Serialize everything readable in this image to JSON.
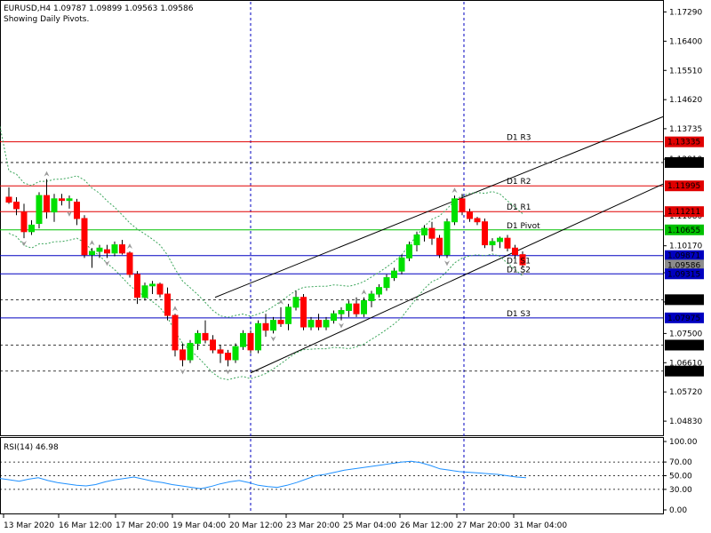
{
  "header": {
    "symbol_line": "EURUSD,H4  1.09787 1.09899 1.09563 1.09586",
    "sub_line": "Showing Daily Pivots."
  },
  "colors": {
    "bull": "#00e000",
    "bear": "#ff0000",
    "pivot_red": "#e00000",
    "pivot_green": "#00c000",
    "pivot_blue": "#0000c0",
    "grid_blue": "#0000c0",
    "band": "#3aa55a",
    "rsi": "#1e90ff"
  },
  "price_axis": {
    "ticks": [
      "1.17290",
      "1.16400",
      "1.15510",
      "1.14620",
      "1.13735",
      "1.12810",
      "1.11080",
      "1.10170",
      "1.09350",
      "1.08460",
      "1.07500",
      "1.06610",
      "1.05720",
      "1.04830"
    ],
    "tick_values": [
      1.1729,
      1.164,
      1.1551,
      1.1462,
      1.13735,
      1.1281,
      1.1108,
      1.1017,
      1.0935,
      1.0846,
      1.075,
      1.0661,
      1.0572,
      1.0483
    ]
  },
  "price_labels": [
    {
      "text": "1.13335",
      "value": 1.13335,
      "style": "red"
    },
    {
      "text": "1.12706",
      "value": 1.12706,
      "style": "black"
    },
    {
      "text": "1.11995",
      "value": 1.11995,
      "style": "red"
    },
    {
      "text": "1.11211",
      "value": 1.11211,
      "style": "red"
    },
    {
      "text": "1.10655",
      "value": 1.10655,
      "style": "green"
    },
    {
      "text": "1.09871",
      "value": 1.09871,
      "style": "blue"
    },
    {
      "text": "1.09586",
      "value": 1.09586,
      "style": "gray"
    },
    {
      "text": "1.09315",
      "value": 1.09315,
      "style": "blue"
    },
    {
      "text": "1.08529",
      "value": 1.08529,
      "style": "black"
    },
    {
      "text": "1.07975",
      "value": 1.07975,
      "style": "blue"
    },
    {
      "text": "1.07146",
      "value": 1.07146,
      "style": "black"
    },
    {
      "text": "1.06355",
      "value": 1.06355,
      "style": "black"
    }
  ],
  "pivots": [
    {
      "name": "D1 R3",
      "value": 1.13335,
      "color": "red"
    },
    {
      "name": "D1 R2",
      "value": 1.11995,
      "color": "red"
    },
    {
      "name": "D1 R1",
      "value": 1.11211,
      "color": "red"
    },
    {
      "name": "D1 Pivot",
      "value": 1.10655,
      "color": "green"
    },
    {
      "name": "D1 S1",
      "value": 1.09871,
      "color": "blue"
    },
    {
      "name": "D1 S2",
      "value": 1.09315,
      "color": "blue"
    },
    {
      "name": "D1 S3",
      "value": 1.07975,
      "color": "blue"
    }
  ],
  "dashed_levels": [
    1.12706,
    1.08529,
    1.07146,
    1.06355
  ],
  "time_axis": [
    "13 Mar 2020",
    "16 Mar 12:00",
    "17 Mar 20:00",
    "19 Mar 04:00",
    "20 Mar 12:00",
    "23 Mar 20:00",
    "25 Mar 04:00",
    "26 Mar 12:00",
    "27 Mar 20:00",
    "31 Mar 04:00"
  ],
  "rsi": {
    "label": "RSI(14) 46.98",
    "ticks": [
      "100.00",
      "70.00",
      "50.00",
      "30.00",
      "0.00"
    ],
    "tick_values": [
      100,
      70,
      50,
      30,
      0
    ],
    "values": [
      46,
      44,
      42,
      45,
      47,
      43,
      40,
      38,
      36,
      35,
      37,
      41,
      44,
      46,
      48,
      45,
      42,
      40,
      37,
      35,
      33,
      31,
      34,
      38,
      41,
      43,
      40,
      36,
      34,
      33,
      36,
      40,
      45,
      50,
      52,
      55,
      58,
      60,
      62,
      64,
      66,
      68,
      70,
      71,
      69,
      65,
      60,
      58,
      56,
      55,
      54,
      53,
      52,
      50,
      48,
      47
    ]
  },
  "chart_data": {
    "type": "candlestick",
    "candles": [
      [
        1.1165,
        1.1195,
        1.1145,
        1.115
      ],
      [
        1.115,
        1.1165,
        1.111,
        1.113
      ],
      [
        1.112,
        1.1145,
        1.104,
        1.106
      ],
      [
        1.106,
        1.1095,
        1.105,
        1.108
      ],
      [
        1.1085,
        1.118,
        1.107,
        1.117
      ],
      [
        1.117,
        1.122,
        1.11,
        1.112
      ],
      [
        1.112,
        1.1175,
        1.109,
        1.116
      ],
      [
        1.116,
        1.1175,
        1.114,
        1.1155
      ],
      [
        1.1155,
        1.117,
        1.113,
        1.116
      ],
      [
        1.115,
        1.116,
        1.108,
        1.11
      ],
      [
        1.11,
        1.111,
        1.098,
        1.099
      ],
      [
        1.099,
        1.101,
        1.095,
        1.1
      ],
      [
        1.1,
        1.102,
        1.098,
        1.101
      ],
      [
        1.1005,
        1.102,
        1.098,
        1.0995
      ],
      [
        1.0995,
        1.103,
        1.0985,
        1.102
      ],
      [
        1.102,
        1.1035,
        1.099,
        1.0995
      ],
      [
        1.0995,
        1.1,
        1.092,
        1.093
      ],
      [
        1.093,
        1.094,
        1.084,
        1.086
      ],
      [
        1.086,
        1.0905,
        1.085,
        1.0895
      ],
      [
        1.0895,
        1.091,
        1.087,
        1.09
      ],
      [
        1.09,
        1.0905,
        1.086,
        1.087
      ],
      [
        1.087,
        1.089,
        1.079,
        1.0805
      ],
      [
        1.0805,
        1.081,
        1.068,
        1.07
      ],
      [
        1.07,
        1.072,
        1.065,
        1.067
      ],
      [
        1.067,
        1.073,
        1.066,
        1.072
      ],
      [
        1.072,
        1.076,
        1.07,
        1.075
      ],
      [
        1.075,
        1.079,
        1.072,
        1.073
      ],
      [
        1.073,
        1.0745,
        1.069,
        1.07
      ],
      [
        1.07,
        1.0715,
        1.066,
        1.069
      ],
      [
        1.069,
        1.07,
        1.065,
        1.067
      ],
      [
        1.067,
        1.072,
        1.066,
        1.071
      ],
      [
        1.071,
        1.076,
        1.07,
        1.075
      ],
      [
        1.075,
        1.076,
        1.069,
        1.07
      ],
      [
        1.07,
        1.079,
        1.069,
        1.078
      ],
      [
        1.078,
        1.081,
        1.074,
        1.076
      ],
      [
        1.076,
        1.08,
        1.075,
        1.079
      ],
      [
        1.079,
        1.083,
        1.077,
        1.078
      ],
      [
        1.078,
        1.084,
        1.076,
        1.083
      ],
      [
        1.083,
        1.088,
        1.082,
        1.086
      ],
      [
        1.086,
        1.087,
        1.076,
        1.077
      ],
      [
        1.077,
        1.08,
        1.076,
        1.079
      ],
      [
        1.079,
        1.081,
        1.076,
        1.077
      ],
      [
        1.077,
        1.08,
        1.076,
        1.079
      ],
      [
        1.079,
        1.082,
        1.078,
        1.081
      ],
      [
        1.081,
        1.083,
        1.079,
        1.082
      ],
      [
        1.082,
        1.085,
        1.08,
        1.084
      ],
      [
        1.084,
        1.086,
        1.08,
        1.081
      ],
      [
        1.081,
        1.086,
        1.08,
        1.085
      ],
      [
        1.085,
        1.088,
        1.083,
        1.087
      ],
      [
        1.087,
        1.09,
        1.086,
        1.089
      ],
      [
        1.089,
        1.093,
        1.088,
        1.092
      ],
      [
        1.092,
        1.095,
        1.091,
        1.094
      ],
      [
        1.094,
        1.099,
        1.093,
        1.098
      ],
      [
        1.098,
        1.103,
        1.097,
        1.102
      ],
      [
        1.102,
        1.106,
        1.1,
        1.105
      ],
      [
        1.105,
        1.108,
        1.103,
        1.107
      ],
      [
        1.107,
        1.109,
        1.102,
        1.104
      ],
      [
        1.104,
        1.105,
        1.098,
        1.099
      ],
      [
        1.099,
        1.11,
        1.098,
        1.109
      ],
      [
        1.109,
        1.117,
        1.108,
        1.116
      ],
      [
        1.116,
        1.1175,
        1.111,
        1.112
      ],
      [
        1.112,
        1.113,
        1.109,
        1.11
      ],
      [
        1.11,
        1.1105,
        1.108,
        1.109
      ],
      [
        1.109,
        1.11,
        1.101,
        1.102
      ],
      [
        1.102,
        1.104,
        1.1,
        1.103
      ],
      [
        1.103,
        1.1045,
        1.101,
        1.104
      ],
      [
        1.104,
        1.105,
        1.1,
        1.101
      ],
      [
        1.101,
        1.102,
        1.098,
        1.099
      ],
      [
        1.099,
        1.1,
        1.095,
        1.0959
      ]
    ],
    "ylim": [
      1.044,
      1.176
    ]
  }
}
